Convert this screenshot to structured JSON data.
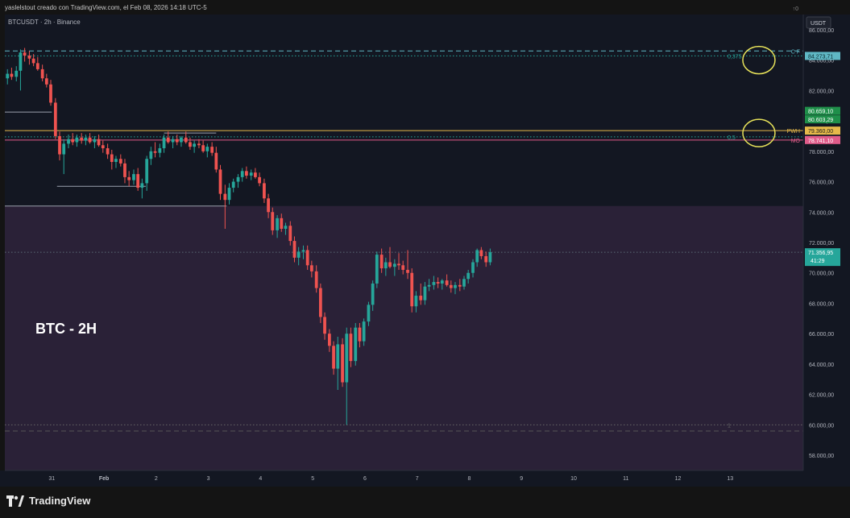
{
  "header": {
    "creator": "yaslelstout creado con TradingView.com, el Feb 08, 2026 14:18 UTC-5",
    "corner_glyph": "↑0"
  },
  "footer": {
    "brand": "TradingView",
    "icon": "tradingview-logo-icon"
  },
  "chart_data": {
    "type": "candlestick",
    "symbol": "BTCUSDT · 2h · Binance",
    "currency": "USDT",
    "annotation_text": "BTC - 2H",
    "y_range": [
      57000,
      87000
    ],
    "y_ticks": [
      86000,
      84000,
      82000,
      80000,
      78000,
      76000,
      74000,
      72000,
      70000,
      68000,
      66000,
      64000,
      62000,
      60000,
      58000
    ],
    "y_tick_labels": [
      "86.000,00",
      "84.000,00",
      "82.000,00",
      "80.000,00",
      "78.000,00",
      "76.000,00",
      "74.000,00",
      "72.000,00",
      "70.000,00",
      "68.000,00",
      "66.000,00",
      "64.000,00",
      "62.000,00",
      "60.000,00",
      "58.000,00"
    ],
    "x_ticks": [
      "31",
      "Feb",
      "2",
      "3",
      "4",
      "5",
      "6",
      "7",
      "8",
      "9",
      "10",
      "11",
      "12",
      "13"
    ],
    "x_tick_days": [
      -1,
      0,
      1,
      2,
      3,
      4,
      5,
      6,
      7,
      8,
      9,
      10,
      11,
      12
    ],
    "x_range_days": [
      -1.9,
      13.4
    ],
    "candles": [
      [
        -1.85,
        82800,
        83400,
        82400,
        83100
      ],
      [
        -1.77,
        83100,
        83500,
        82700,
        82900
      ],
      [
        -1.68,
        82900,
        83600,
        82600,
        83300
      ],
      [
        -1.6,
        83300,
        84700,
        82000,
        84500
      ],
      [
        -1.52,
        84500,
        84800,
        83900,
        84300
      ],
      [
        -1.43,
        84300,
        84600,
        83700,
        84100
      ],
      [
        -1.35,
        84100,
        84400,
        83600,
        83800
      ],
      [
        -1.27,
        83800,
        84200,
        83300,
        83400
      ],
      [
        -1.18,
        83400,
        83700,
        82600,
        82800
      ],
      [
        -1.1,
        82800,
        83100,
        82200,
        82400
      ],
      [
        -1.02,
        82400,
        82700,
        81000,
        81200
      ],
      [
        -0.93,
        81200,
        81500,
        78800,
        79000
      ],
      [
        -0.85,
        79000,
        79300,
        77400,
        77800
      ],
      [
        -0.77,
        77800,
        78800,
        76500,
        78500
      ],
      [
        -0.68,
        78500,
        79100,
        78200,
        78800
      ],
      [
        -0.6,
        78800,
        79200,
        78400,
        78600
      ],
      [
        -0.52,
        78600,
        79100,
        78300,
        78900
      ],
      [
        -0.43,
        78900,
        79200,
        78500,
        78700
      ],
      [
        -0.35,
        78700,
        79100,
        78400,
        78900
      ],
      [
        -0.27,
        78900,
        79200,
        78500,
        78600
      ],
      [
        -0.18,
        78600,
        79000,
        78200,
        78800
      ],
      [
        -0.1,
        78800,
        79100,
        78300,
        78400
      ],
      [
        -0.02,
        78400,
        78700,
        77900,
        78200
      ],
      [
        0.07,
        78200,
        78500,
        77500,
        77800
      ],
      [
        0.15,
        77800,
        78100,
        76800,
        77300
      ],
      [
        0.23,
        77300,
        77700,
        76900,
        77500
      ],
      [
        0.32,
        77500,
        77800,
        77000,
        77200
      ],
      [
        0.4,
        77200,
        77500,
        75900,
        76300
      ],
      [
        0.48,
        76300,
        76700,
        75700,
        76100
      ],
      [
        0.57,
        76100,
        76800,
        75800,
        76500
      ],
      [
        0.65,
        76500,
        76900,
        75400,
        75600
      ],
      [
        0.73,
        75600,
        76200,
        74900,
        75900
      ],
      [
        0.82,
        75900,
        77700,
        75400,
        77500
      ],
      [
        0.9,
        77500,
        78300,
        77100,
        78000
      ],
      [
        0.98,
        78000,
        78600,
        77600,
        77900
      ],
      [
        1.07,
        77900,
        78500,
        77600,
        78200
      ],
      [
        1.15,
        78200,
        79100,
        77900,
        78900
      ],
      [
        1.23,
        78900,
        79300,
        78500,
        78600
      ],
      [
        1.32,
        78600,
        79000,
        78200,
        78800
      ],
      [
        1.4,
        78800,
        79100,
        78400,
        78600
      ],
      [
        1.48,
        78600,
        79000,
        78300,
        78900
      ],
      [
        1.57,
        78900,
        79300,
        78500,
        78600
      ],
      [
        1.65,
        78600,
        78900,
        78100,
        78300
      ],
      [
        1.73,
        78300,
        78700,
        77900,
        78500
      ],
      [
        1.82,
        78500,
        78800,
        78200,
        78400
      ],
      [
        1.9,
        78400,
        78700,
        77900,
        78000
      ],
      [
        1.98,
        78000,
        78500,
        77600,
        78300
      ],
      [
        2.07,
        78300,
        78600,
        77700,
        77900
      ],
      [
        2.15,
        77900,
        78300,
        76600,
        76800
      ],
      [
        2.23,
        76800,
        77100,
        74800,
        75200
      ],
      [
        2.32,
        75200,
        75800,
        72900,
        74800
      ],
      [
        2.4,
        74800,
        75900,
        74500,
        75600
      ],
      [
        2.48,
        75600,
        76200,
        75300,
        76000
      ],
      [
        2.57,
        76000,
        76500,
        75600,
        76300
      ],
      [
        2.65,
        76300,
        76900,
        76000,
        76700
      ],
      [
        2.73,
        76700,
        77000,
        76200,
        76400
      ],
      [
        2.82,
        76400,
        76800,
        76100,
        76600
      ],
      [
        2.9,
        76600,
        76900,
        76200,
        76300
      ],
      [
        2.98,
        76300,
        76600,
        75700,
        75900
      ],
      [
        3.07,
        75900,
        76200,
        74600,
        74900
      ],
      [
        3.15,
        74900,
        75200,
        73600,
        74000
      ],
      [
        3.23,
        74000,
        74300,
        72500,
        72800
      ],
      [
        3.32,
        72800,
        73800,
        72300,
        73600
      ],
      [
        3.4,
        73600,
        73900,
        72700,
        72900
      ],
      [
        3.48,
        72900,
        73300,
        72500,
        73100
      ],
      [
        3.57,
        73100,
        73400,
        71800,
        72100
      ],
      [
        3.65,
        72100,
        72400,
        70700,
        71000
      ],
      [
        3.73,
        71000,
        71700,
        70500,
        71400
      ],
      [
        3.82,
        71400,
        71800,
        70900,
        71500
      ],
      [
        3.9,
        71500,
        71800,
        70200,
        70500
      ],
      [
        3.98,
        70500,
        70800,
        69700,
        70100
      ],
      [
        4.07,
        70100,
        70500,
        68700,
        69000
      ],
      [
        4.15,
        69000,
        69300,
        66700,
        67100
      ],
      [
        4.23,
        67100,
        67400,
        65600,
        66000
      ],
      [
        4.32,
        66000,
        66300,
        64800,
        65200
      ],
      [
        4.4,
        65200,
        65500,
        63300,
        63700
      ],
      [
        4.48,
        63700,
        65800,
        62300,
        65300
      ],
      [
        4.57,
        65300,
        65700,
        62500,
        62800
      ],
      [
        4.65,
        62800,
        66400,
        60000,
        66000
      ],
      [
        4.73,
        66000,
        66400,
        63800,
        64200
      ],
      [
        4.82,
        64200,
        66700,
        63900,
        66400
      ],
      [
        4.9,
        66400,
        66700,
        65100,
        65500
      ],
      [
        4.98,
        65500,
        67000,
        65200,
        66800
      ],
      [
        5.07,
        66800,
        68100,
        66500,
        67900
      ],
      [
        5.15,
        67900,
        69500,
        67500,
        69300
      ],
      [
        5.23,
        69300,
        71400,
        69000,
        71200
      ],
      [
        5.32,
        71200,
        71600,
        70000,
        70300
      ],
      [
        5.4,
        70300,
        71000,
        69800,
        70700
      ],
      [
        5.48,
        70700,
        71700,
        70300,
        70400
      ],
      [
        5.57,
        70400,
        70900,
        69800,
        70600
      ],
      [
        5.65,
        70600,
        71300,
        70200,
        70500
      ],
      [
        5.73,
        70500,
        70800,
        69900,
        70200
      ],
      [
        5.82,
        70200,
        71500,
        69600,
        70000
      ],
      [
        5.9,
        70000,
        70300,
        67400,
        67800
      ],
      [
        5.98,
        67800,
        68800,
        67400,
        68500
      ],
      [
        6.07,
        68500,
        69300,
        67900,
        68200
      ],
      [
        6.15,
        68200,
        69400,
        67900,
        69100
      ],
      [
        6.23,
        69100,
        69600,
        68800,
        69200
      ],
      [
        6.32,
        69200,
        69800,
        68900,
        69400
      ],
      [
        6.4,
        69400,
        69700,
        69000,
        69300
      ],
      [
        6.48,
        69300,
        69600,
        68900,
        69500
      ],
      [
        6.57,
        69500,
        69900,
        69100,
        69200
      ],
      [
        6.65,
        69200,
        69500,
        68700,
        69000
      ],
      [
        6.73,
        69000,
        69400,
        68600,
        69200
      ],
      [
        6.82,
        69200,
        69600,
        68800,
        69100
      ],
      [
        6.9,
        69100,
        69800,
        68900,
        69600
      ],
      [
        6.98,
        69600,
        70200,
        69300,
        70000
      ],
      [
        7.07,
        70000,
        70900,
        69700,
        70700
      ],
      [
        7.15,
        70700,
        71600,
        70400,
        71500
      ],
      [
        7.23,
        71500,
        71700,
        70900,
        71100
      ],
      [
        7.32,
        71100,
        71400,
        70400,
        70700
      ],
      [
        7.4,
        70700,
        71600,
        70500,
        71357
      ]
    ],
    "premarket_zone": {
      "top": 74400,
      "bottom": 57000
    },
    "horizontal_levels": [
      {
        "name": "top-dashed",
        "price": 84600,
        "label": "C F",
        "style": "dashed",
        "color": "#5fb7c4"
      },
      {
        "name": "fib-0375",
        "price": 84273.71,
        "label": "0,375",
        "style": "dotted",
        "color": "#26a69a"
      },
      {
        "name": "pwh",
        "price": 79360,
        "label": "PWH",
        "style": "solid",
        "color": "#e6b94a"
      },
      {
        "name": "fib-05",
        "price": 78950,
        "label": "0,5",
        "style": "dotted",
        "color": "#26a69a"
      },
      {
        "name": "mo",
        "price": 78741.1,
        "label": "MO",
        "style": "solid",
        "color": "#e05c8a"
      },
      {
        "name": "current",
        "price": 71356.95,
        "label": "",
        "style": "dotted",
        "color": "#5a6a76"
      },
      {
        "name": "low",
        "price": 60000,
        "label": "1",
        "style": "dotted",
        "color": "#666"
      },
      {
        "name": "bottom-dashed",
        "price": 59600,
        "label": "",
        "style": "dashed",
        "color": "#555"
      }
    ],
    "price_tags": [
      {
        "value": "84.273,71",
        "price": 84273.71,
        "color": "#5fb7c4",
        "text_color": "#0b2a30"
      },
      {
        "value": "80.659,10",
        "price": 80659.1,
        "color": "#1f8f4a",
        "text_color": "#ffffff"
      },
      {
        "value": "80.603,29",
        "price": 80103.29,
        "color": "#1f8f4a",
        "text_color": "#ffffff"
      },
      {
        "value": "79.360,00",
        "price": 79360,
        "color": "#e6b94a",
        "text_color": "#1a1a1a"
      },
      {
        "value": "78.741,10",
        "price": 78741.1,
        "color": "#e05c8a",
        "text_color": "#ffffff"
      },
      {
        "value": "71.356,95",
        "price": 71356.95,
        "color": "#26a69a",
        "text_color": "#ffffff",
        "sub": "41:29"
      }
    ],
    "highlight_circles": [
      {
        "day": 12.55,
        "price": 84000
      },
      {
        "day": 12.55,
        "price": 79200
      }
    ],
    "support_lines": [
      {
        "from_day": -1.9,
        "to_day": -1.0,
        "price": 80580
      },
      {
        "from_day": -0.9,
        "to_day": 0.8,
        "price": 75700
      },
      {
        "from_day": -1.9,
        "to_day": 2.35,
        "price": 74400
      },
      {
        "from_day": 1.15,
        "to_day": 2.15,
        "price": 79200
      }
    ]
  }
}
